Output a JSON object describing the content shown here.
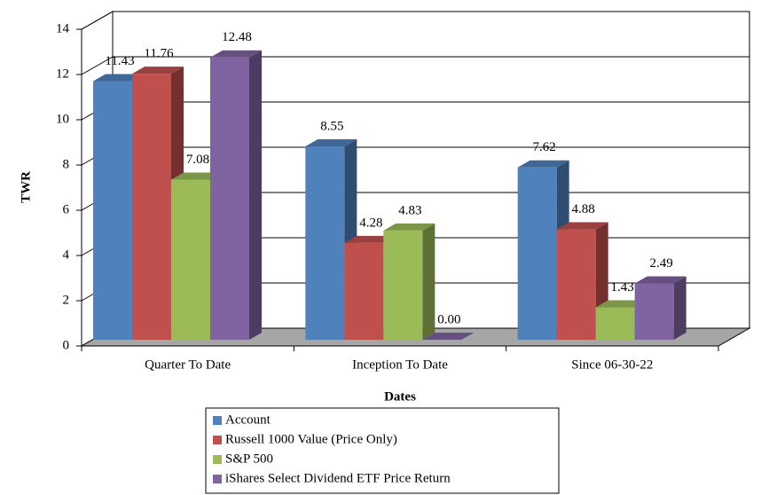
{
  "chart_data": {
    "type": "bar3d",
    "x_label": "Dates",
    "y_label": "TWR",
    "categories": [
      "Quarter To Date",
      "Inception To Date",
      "Since 06-30-22"
    ],
    "series": [
      {
        "name": "Account",
        "color": "#4f81bd",
        "values": [
          11.43,
          8.55,
          7.62
        ]
      },
      {
        "name": "Russell 1000 Value (Price Only)",
        "color": "#c0504d",
        "values": [
          11.76,
          4.28,
          4.88
        ]
      },
      {
        "name": "S&P 500",
        "color": "#9bbb59",
        "values": [
          7.08,
          4.83,
          1.43
        ]
      },
      {
        "name": "iShares Select Dividend ETF Price Return",
        "color": "#8064a2",
        "values": [
          12.48,
          0,
          2.49
        ],
        "value_labels": [
          "12.48",
          "0.00",
          "2.49"
        ]
      }
    ],
    "ylim": [
      0,
      14
    ],
    "yticks": [
      0,
      2,
      4,
      6,
      8,
      10,
      12,
      14
    ],
    "grid": true
  }
}
